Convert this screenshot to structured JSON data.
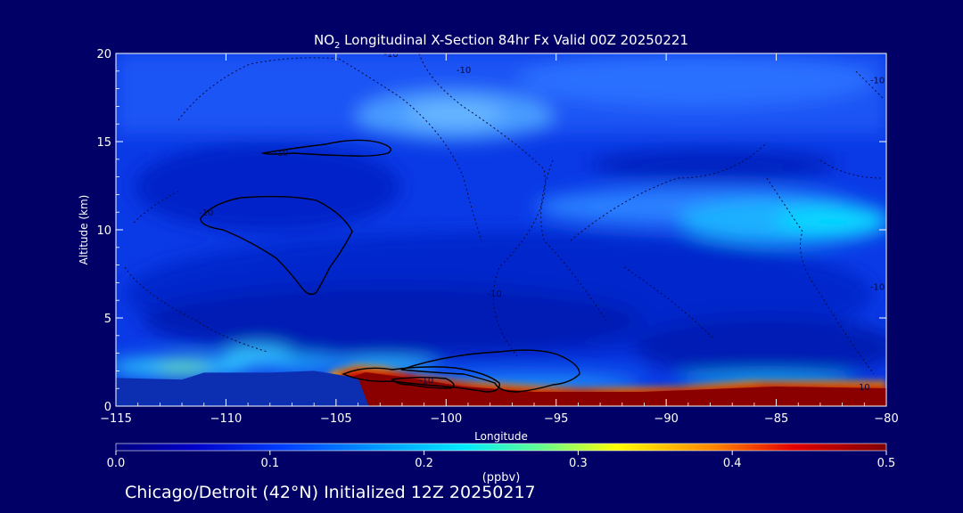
{
  "chart_data": {
    "type": "heatmap",
    "title_prefix": "NO",
    "title_sub": "2",
    "title_suffix": " Longitudinal X-Section 84hr  Fx Valid 00Z 20250221",
    "xlabel": "Longitude",
    "ylabel": "Altitude (km)",
    "xlim": [
      -115,
      -80
    ],
    "ylim": [
      0,
      20
    ],
    "x_ticks": [
      -115,
      -110,
      -105,
      -100,
      -95,
      -90,
      -85,
      -80
    ],
    "y_ticks": [
      0,
      5,
      10,
      15,
      20
    ],
    "colorbar": {
      "label": "(ppbv)",
      "range": [
        0.0,
        0.5
      ],
      "ticks": [
        "0.0",
        "0.1",
        "0.2",
        "0.3",
        "0.4",
        "0.5"
      ],
      "colors": [
        "#000080",
        "#0000c8",
        "#0040ff",
        "#00a0ff",
        "#00e8ff",
        "#60ff90",
        "#ffff00",
        "#ff8000",
        "#e00000",
        "#800000"
      ]
    },
    "contour_labels": [
      {
        "text": "-10",
        "lon": -110.9,
        "alt": 10.8
      },
      {
        "text": "-10",
        "lon": -107.5,
        "alt": 14.2
      },
      {
        "text": "-10",
        "lon": -102.5,
        "alt": 19.8
      },
      {
        "text": "-10",
        "lon": -99.2,
        "alt": 18.9
      },
      {
        "text": "-10",
        "lon": -97.8,
        "alt": 6.2
      },
      {
        "text": "-10",
        "lon": -100.9,
        "alt": 1.3
      },
      {
        "text": "-10",
        "lon": -80.4,
        "alt": 18.3
      },
      {
        "text": "-10",
        "lon": -80.4,
        "alt": 6.6
      },
      {
        "text": "10",
        "lon": -81.0,
        "alt": 0.9
      }
    ],
    "terrain": [
      {
        "lon": -115,
        "alt": 1.6
      },
      {
        "lon": -112,
        "alt": 1.5
      },
      {
        "lon": -111,
        "alt": 1.9
      },
      {
        "lon": -108,
        "alt": 1.9
      },
      {
        "lon": -106,
        "alt": 2.0
      },
      {
        "lon": -104,
        "alt": 1.6
      },
      {
        "lon": -100,
        "alt": 1.2
      },
      {
        "lon": -97,
        "alt": 0.6
      },
      {
        "lon": -94,
        "alt": 0.6
      },
      {
        "lon": -90,
        "alt": 0.7
      },
      {
        "lon": -86,
        "alt": 0.9
      },
      {
        "lon": -80,
        "alt": 0.9
      }
    ]
  },
  "footer": "Chicago/Detroit (42°N) Initialized 12Z 20250217"
}
